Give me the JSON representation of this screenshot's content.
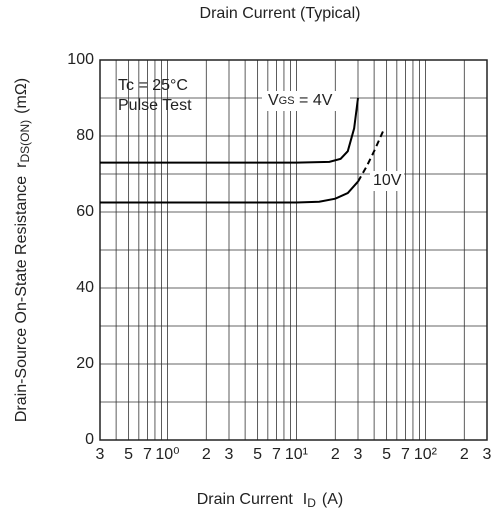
{
  "chart_data": {
    "type": "line",
    "title": "Drain Current (Typical)",
    "xlabel": "Drain Current",
    "xlabel_symbol": "I",
    "xlabel_sub": "D",
    "xlabel_unit": "(A)",
    "ylabel": "Drain-Source On-State Resistance",
    "ylabel_symbol": "r",
    "ylabel_sub": "DS(ON)",
    "ylabel_unit": "(mΩ)",
    "xscale": "log",
    "xlim": [
      0.3,
      300
    ],
    "ylim": [
      0,
      100
    ],
    "xticks": [
      {
        "value": 0.3,
        "label": "3"
      },
      {
        "value": 0.5,
        "label": "5"
      },
      {
        "value": 0.7,
        "label": "7"
      },
      {
        "value": 1,
        "label": "10⁰"
      },
      2,
      3,
      {
        "value": 5,
        "label": "5"
      },
      {
        "value": 7,
        "label": "7"
      },
      {
        "value": 10,
        "label": "10¹"
      },
      {
        "value": 20,
        "label": "2"
      },
      {
        "value": 30,
        "label": "3"
      },
      {
        "value": 50,
        "label": "5"
      },
      {
        "value": 70,
        "label": "7"
      },
      {
        "value": 100,
        "label": "10²"
      },
      {
        "value": 200,
        "label": "2"
      },
      {
        "value": 300,
        "label": "3"
      }
    ],
    "xgrid_minor": [
      0.4,
      0.6,
      0.8,
      0.9,
      4,
      6,
      8,
      9,
      40,
      60,
      80,
      90
    ],
    "yticks": [
      0,
      20,
      40,
      60,
      80,
      100
    ],
    "ygrid_minor": [
      10,
      30,
      50,
      70,
      90
    ],
    "grid": true,
    "annotations": [
      "Tc = 25°C",
      "Pulse Test"
    ],
    "series": [
      {
        "name": "4V",
        "label_parts": [
          "V",
          "GS",
          " = 4V"
        ],
        "color": "#000000",
        "x": [
          0.3,
          1,
          3,
          10,
          18,
          22,
          25,
          28,
          30
        ],
        "values": [
          73,
          73,
          73,
          73,
          73.2,
          74,
          76,
          82,
          90
        ]
      },
      {
        "name": "10V",
        "color": "#000000",
        "dash_from_x": 30,
        "x": [
          0.3,
          1,
          3,
          10,
          15,
          20,
          25,
          30,
          35,
          40,
          48
        ],
        "values": [
          62.5,
          62.5,
          62.5,
          62.5,
          62.7,
          63.5,
          65,
          68,
          72,
          76,
          82
        ]
      }
    ]
  }
}
